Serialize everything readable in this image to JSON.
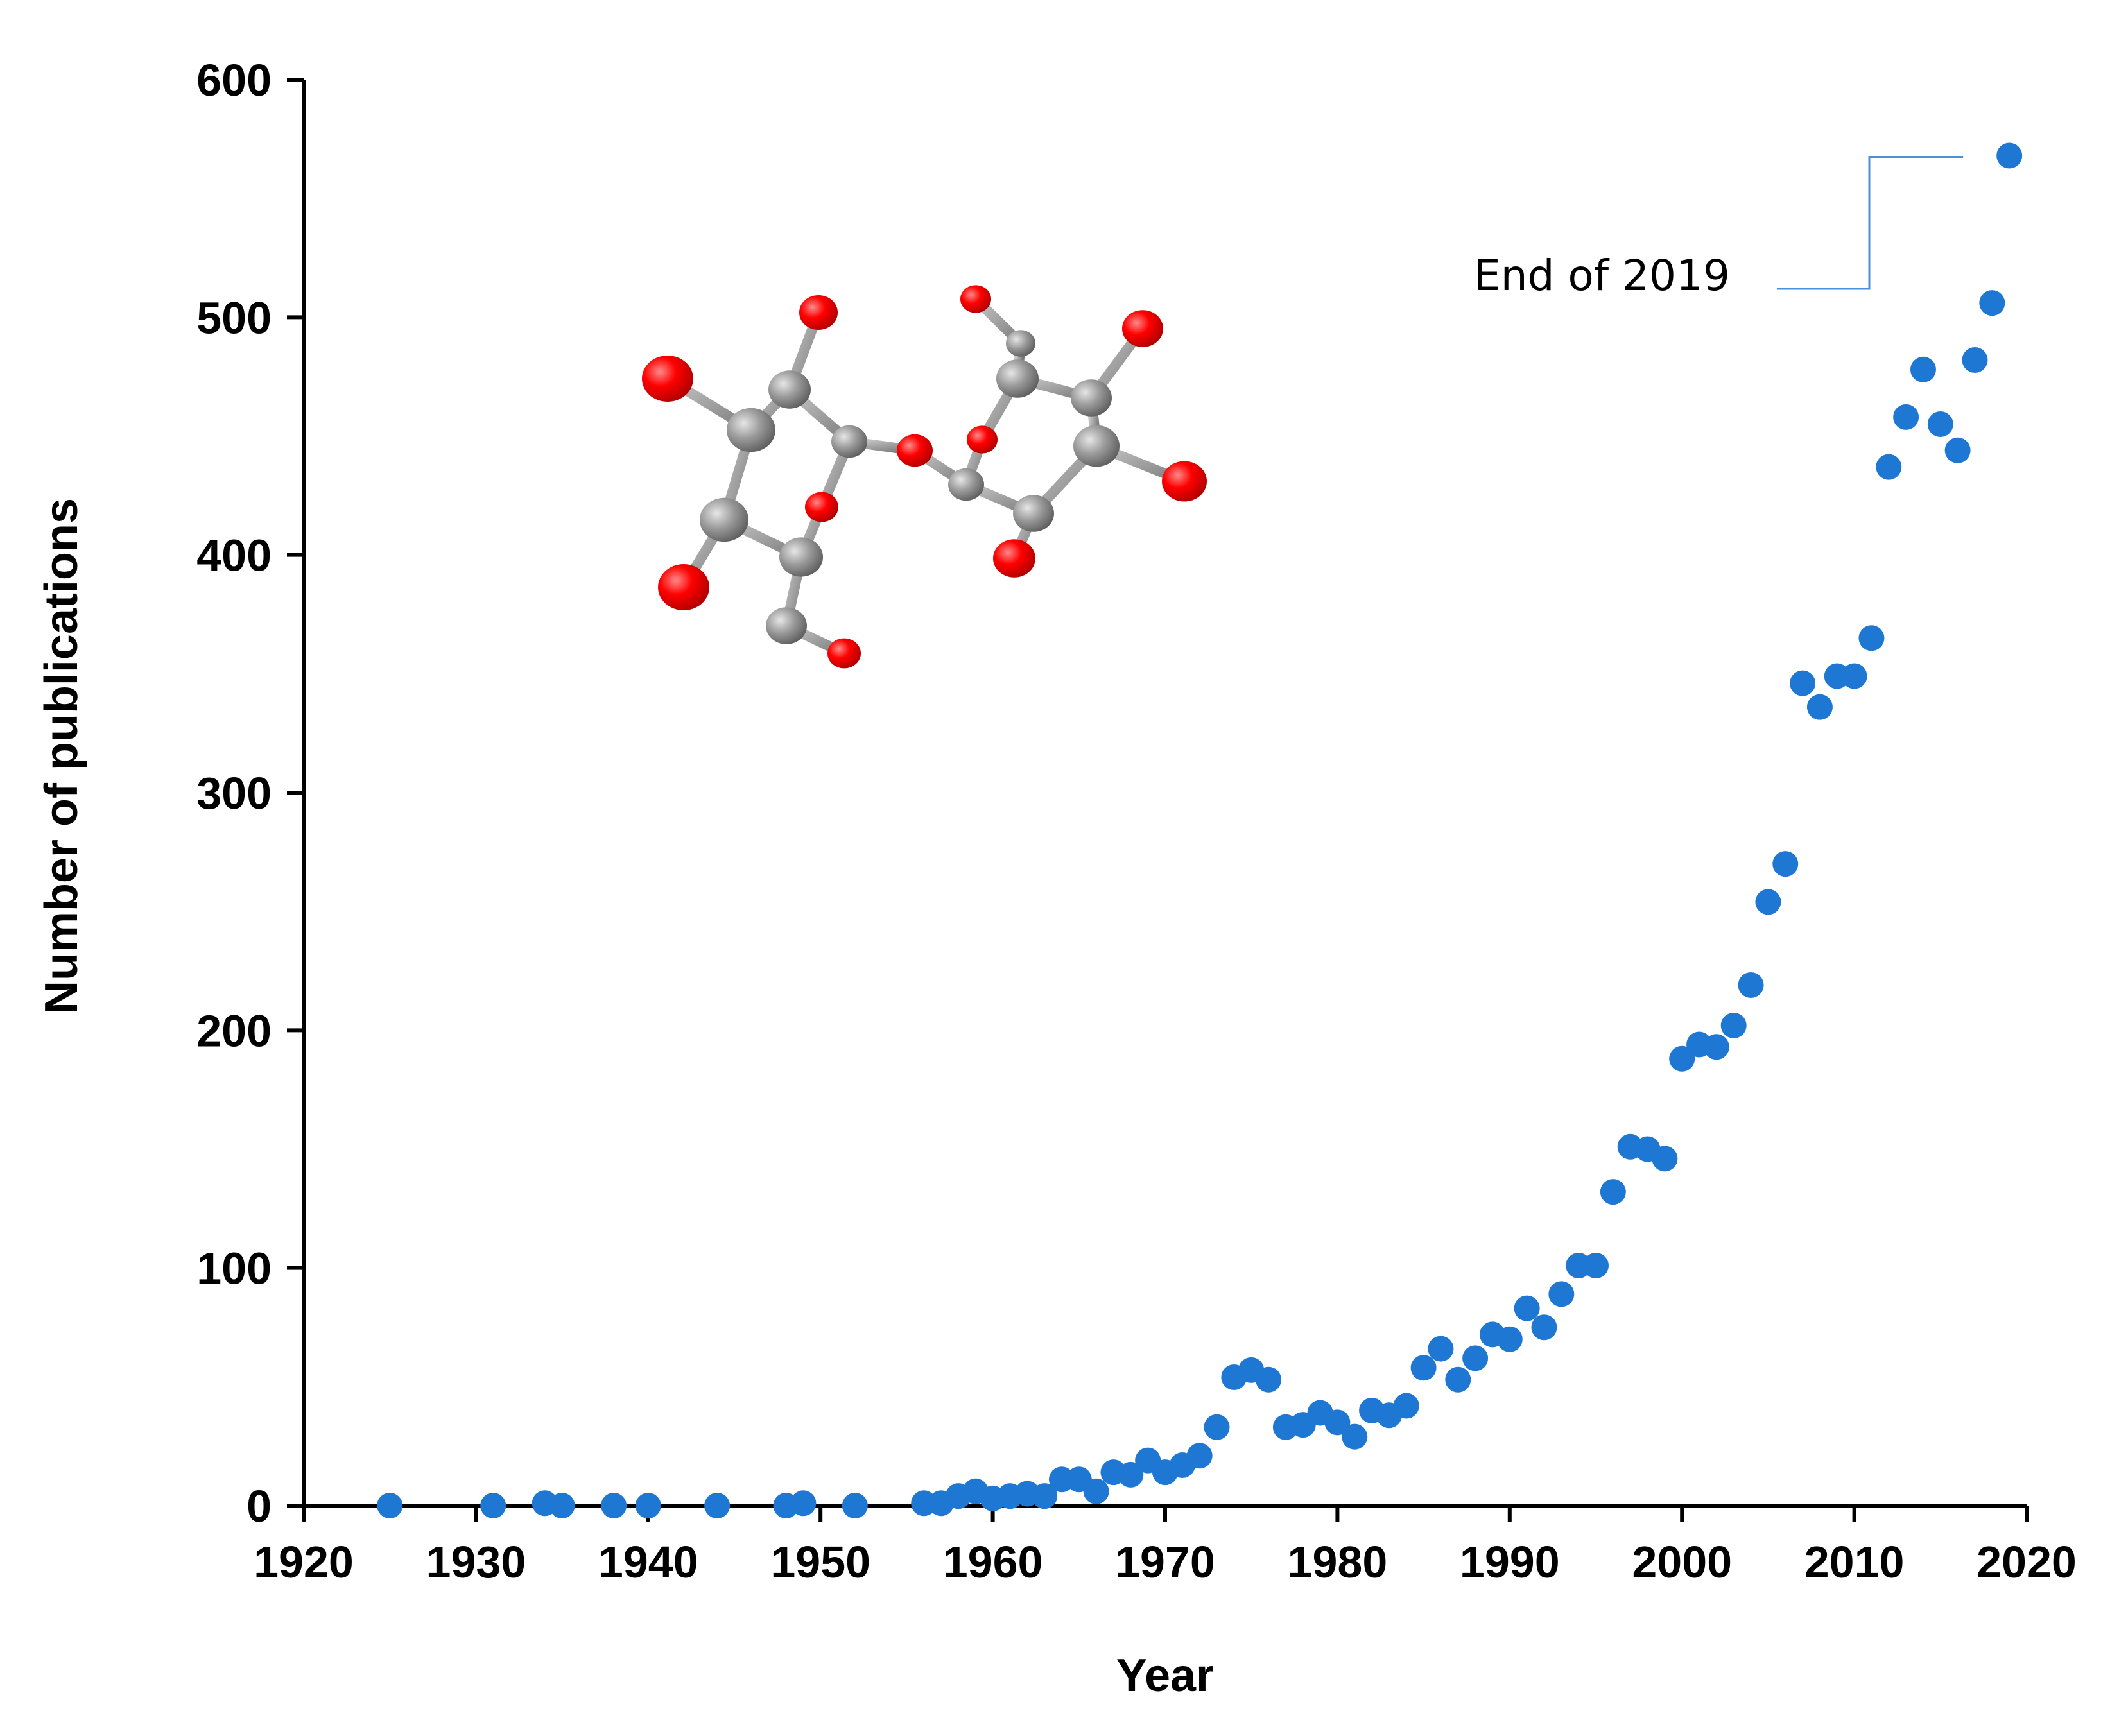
{
  "chart_data": {
    "type": "scatter",
    "title": "",
    "xlabel": "Year",
    "ylabel": "Number of publications",
    "xlim": [
      1920,
      2020
    ],
    "ylim": [
      0,
      600
    ],
    "xticks": [
      1920,
      1930,
      1940,
      1950,
      1960,
      1970,
      1980,
      1990,
      2000,
      2010,
      2020
    ],
    "yticks": [
      0,
      100,
      200,
      300,
      400,
      500,
      600
    ],
    "grid": false,
    "legend": "none",
    "series": [
      {
        "name": "Publications",
        "color": "#1f77d4",
        "points": [
          [
            1925,
            0
          ],
          [
            1931,
            0
          ],
          [
            1934,
            1
          ],
          [
            1935,
            0
          ],
          [
            1938,
            0
          ],
          [
            1940,
            0
          ],
          [
            1944,
            0
          ],
          [
            1948,
            0
          ],
          [
            1949,
            1
          ],
          [
            1952,
            0
          ],
          [
            1956,
            1
          ],
          [
            1957,
            1
          ],
          [
            1958,
            4
          ],
          [
            1959,
            6
          ],
          [
            1960,
            3
          ],
          [
            1961,
            4
          ],
          [
            1962,
            5
          ],
          [
            1963,
            4
          ],
          [
            1964,
            11
          ],
          [
            1965,
            11
          ],
          [
            1966,
            6
          ],
          [
            1967,
            14
          ],
          [
            1968,
            13
          ],
          [
            1969,
            19
          ],
          [
            1970,
            14
          ],
          [
            1971,
            17
          ],
          [
            1972,
            21
          ],
          [
            1973,
            33
          ],
          [
            1974,
            54
          ],
          [
            1975,
            57
          ],
          [
            1976,
            53
          ],
          [
            1977,
            33
          ],
          [
            1978,
            34
          ],
          [
            1979,
            39
          ],
          [
            1980,
            35
          ],
          [
            1981,
            29
          ],
          [
            1982,
            40
          ],
          [
            1983,
            38
          ],
          [
            1984,
            42
          ],
          [
            1985,
            58
          ],
          [
            1986,
            66
          ],
          [
            1987,
            53
          ],
          [
            1988,
            62
          ],
          [
            1989,
            72
          ],
          [
            1990,
            70
          ],
          [
            1991,
            83
          ],
          [
            1992,
            75
          ],
          [
            1993,
            89
          ],
          [
            1994,
            101
          ],
          [
            1995,
            101
          ],
          [
            1996,
            132
          ],
          [
            1997,
            151
          ],
          [
            1998,
            150
          ],
          [
            1999,
            146
          ],
          [
            2000,
            188
          ],
          [
            2001,
            194
          ],
          [
            2002,
            193
          ],
          [
            2003,
            202
          ],
          [
            2004,
            219
          ],
          [
            2005,
            254
          ],
          [
            2006,
            270
          ],
          [
            2007,
            346
          ],
          [
            2008,
            336
          ],
          [
            2009,
            349
          ],
          [
            2010,
            349
          ],
          [
            2011,
            365
          ],
          [
            2012,
            437
          ],
          [
            2013,
            458
          ],
          [
            2014,
            478
          ],
          [
            2015,
            455
          ],
          [
            2016,
            444
          ],
          [
            2017,
            482
          ],
          [
            2018,
            506
          ],
          [
            2019,
            568
          ]
        ]
      }
    ],
    "annotations": [
      {
        "text": "End of 2019",
        "x": 2019,
        "y": 568
      }
    ]
  },
  "colors": {
    "marker": "#1f77d4",
    "axis": "#000000",
    "callout_line": "#4a90d9",
    "atom_oxygen": "#ff0000",
    "atom_carbon": "#8c8c8c",
    "bond": "#9a9a9a"
  },
  "inset": {
    "icon": "disaccharide-molecule-icon"
  }
}
